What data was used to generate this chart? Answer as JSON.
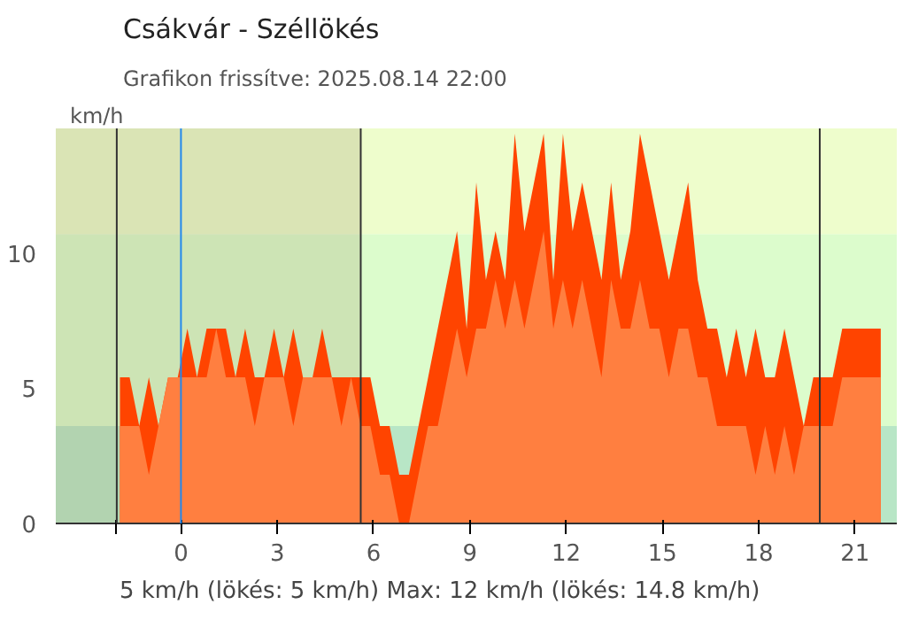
{
  "chart_data": {
    "type": "area",
    "title": "Csákvár - Széllökés",
    "subtitle": "Grafikon frissítve: 2025.08.14 22:00",
    "ylabel": "km/h",
    "x": [
      -1.9,
      -1.6,
      -1.3,
      -1.0,
      -0.7,
      -0.4,
      -0.1,
      0.2,
      0.5,
      0.8,
      1.1,
      1.4,
      1.7,
      2.0,
      2.3,
      2.6,
      2.9,
      3.2,
      3.5,
      3.8,
      4.1,
      4.4,
      4.7,
      5.0,
      5.3,
      5.6,
      5.9,
      6.2,
      6.5,
      6.8,
      7.1,
      7.4,
      7.7,
      8.0,
      8.3,
      8.6,
      8.9,
      9.2,
      9.5,
      9.8,
      10.1,
      10.4,
      10.7,
      11.0,
      11.3,
      11.6,
      11.9,
      12.2,
      12.5,
      12.8,
      13.1,
      13.4,
      13.7,
      14.0,
      14.3,
      14.6,
      14.9,
      15.2,
      15.5,
      15.8,
      16.1,
      16.4,
      16.7,
      17.0,
      17.3,
      17.6,
      17.9,
      18.2,
      18.5,
      18.8,
      19.1,
      19.4,
      19.7,
      20.0,
      20.3,
      20.6,
      20.9,
      21.2,
      21.5,
      21.8
    ],
    "series": [
      {
        "color": "#ff4400",
        "values": [
          5.4,
          5.4,
          3.6,
          5.4,
          3.6,
          5.4,
          5.4,
          7.2,
          5.4,
          7.2,
          7.2,
          7.2,
          5.4,
          7.2,
          5.4,
          5.4,
          7.2,
          5.4,
          7.2,
          5.4,
          5.4,
          7.2,
          5.4,
          5.4,
          5.4,
          5.4,
          5.4,
          3.6,
          3.6,
          1.8,
          1.8,
          3.6,
          5.4,
          7.2,
          9,
          10.8,
          7.2,
          12.6,
          9,
          10.8,
          9,
          14.4,
          10.8,
          12.6,
          14.4,
          9,
          14.4,
          10.8,
          12.6,
          10.8,
          9,
          12.6,
          9,
          10.8,
          14.4,
          12.6,
          10.8,
          9,
          10.8,
          12.6,
          9,
          7.2,
          7.2,
          5.4,
          7.2,
          5.4,
          7.2,
          5.4,
          5.4,
          7.2,
          5.4,
          3.6,
          5.4,
          5.4,
          5.4,
          7.2,
          7.2,
          7.2,
          7.2,
          7.2
        ]
      },
      {
        "color": "#ff7f40",
        "values": [
          3.6,
          3.6,
          3.6,
          1.8,
          3.6,
          5.4,
          5.4,
          5.4,
          5.4,
          5.4,
          7.2,
          5.4,
          5.4,
          5.4,
          3.6,
          5.4,
          5.4,
          5.4,
          3.6,
          5.4,
          5.4,
          5.4,
          5.4,
          3.6,
          5.4,
          3.6,
          3.6,
          1.8,
          1.8,
          0,
          0,
          1.8,
          3.6,
          3.6,
          5.4,
          7.2,
          5.4,
          7.2,
          7.2,
          9,
          7.2,
          9,
          7.2,
          9,
          10.8,
          7.2,
          9,
          7.2,
          9,
          7.2,
          5.4,
          9,
          7.2,
          7.2,
          9,
          7.2,
          7.2,
          5.4,
          7.2,
          7.2,
          5.4,
          5.4,
          3.6,
          3.6,
          3.6,
          3.6,
          1.8,
          3.6,
          1.8,
          3.6,
          1.8,
          3.6,
          3.6,
          3.6,
          3.6,
          5.4,
          5.4,
          5.4,
          5.4,
          5.4
        ]
      }
    ],
    "xlim": [
      -3.9,
      22.3
    ],
    "ylim": [
      0,
      14.6
    ],
    "xticks": [
      {
        "value": -2,
        "label": null
      },
      0,
      3,
      6,
      9,
      12,
      15,
      18,
      21
    ],
    "yticks": [
      0,
      5,
      10
    ],
    "bands": [
      {
        "axis": "y",
        "from": 0,
        "to": 3.6,
        "color": "#b8e6c6"
      },
      {
        "axis": "y",
        "from": 3.6,
        "to": 10.7,
        "color": "#dcfccc"
      },
      {
        "axis": "y",
        "from": 10.7,
        "to": 14.6,
        "color": "#eefdcc"
      },
      {
        "axis": "x",
        "from": -3.9,
        "to": 5.6,
        "color": "#a09a70"
      }
    ],
    "ref_lines": [
      {
        "axis": "x",
        "value": -2,
        "color": "#333333"
      },
      {
        "axis": "x",
        "value": 0,
        "color": "#2288ee"
      },
      {
        "axis": "x",
        "value": 5.6,
        "color": "#333333"
      },
      {
        "axis": "x",
        "value": 19.9,
        "color": "#333333"
      }
    ],
    "annotations": [
      "5 km/h  (lökés: 5 km/h)  Max: 12 km/h (lökés: 14.8 km/h)"
    ]
  }
}
